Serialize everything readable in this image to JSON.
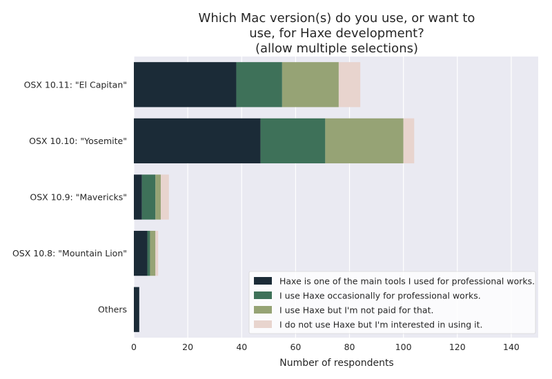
{
  "chart_data": {
    "type": "bar",
    "orientation": "horizontal",
    "stacked": true,
    "title_lines": [
      "Which Mac version(s) do you use, or want to",
      "use, for Haxe development?",
      "(allow multiple selections)"
    ],
    "xlabel": "Number of respondents",
    "ylabel": "",
    "xlim": [
      0,
      150
    ],
    "xticks": [
      0,
      20,
      40,
      60,
      80,
      100,
      120,
      140
    ],
    "grid": true,
    "legend_position": "lower-right",
    "categories": [
      "OSX 10.11: \"El Capitan\"",
      "OSX 10.10: \"Yosemite\"",
      "OSX 10.9: \"Mavericks\"",
      "OSX 10.8: \"Mountain Lion\"",
      "Others"
    ],
    "series": [
      {
        "name": "Haxe is one of the main tools I used for professional works.",
        "color": "#1b2b37",
        "values": [
          38,
          47,
          3,
          5,
          2
        ]
      },
      {
        "name": "I use Haxe occasionally for professional works.",
        "color": "#3e7159",
        "values": [
          17,
          24,
          5,
          1,
          0
        ]
      },
      {
        "name": "I use Haxe but I'm not paid for that.",
        "color": "#96a375",
        "values": [
          21,
          29,
          2,
          2,
          0
        ]
      },
      {
        "name": "I do not use Haxe but I'm interested in using it.",
        "color": "#e8d4ce",
        "values": [
          8,
          4,
          3,
          1,
          0
        ]
      }
    ]
  }
}
